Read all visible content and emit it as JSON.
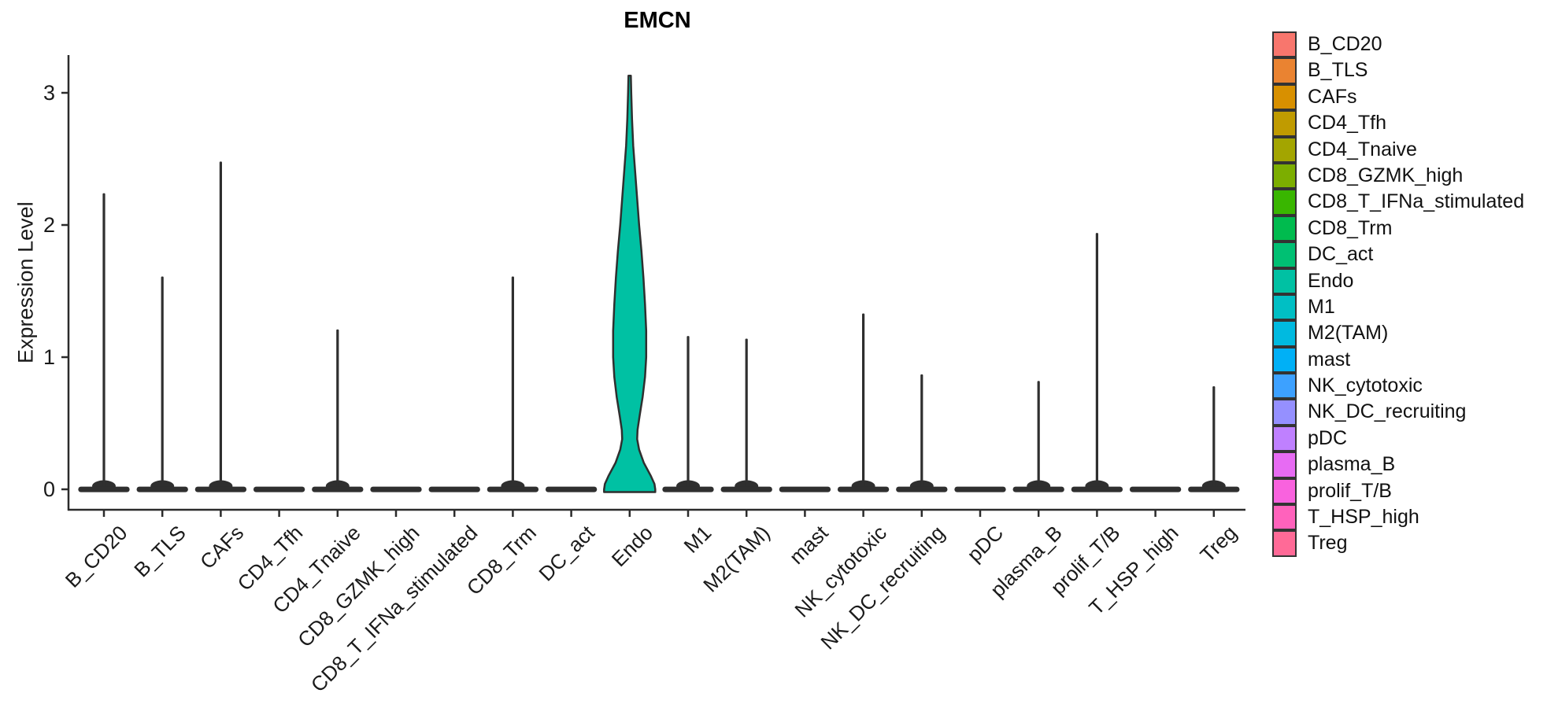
{
  "figure": {
    "title": "EMCN",
    "ylabel": "Expression Level"
  },
  "chart_data": {
    "type": "violin",
    "title": "EMCN",
    "xlabel": "",
    "ylabel": "Expression Level",
    "ylim": [
      0,
      3.3
    ],
    "yticks": [
      0,
      1,
      2,
      3
    ],
    "grid": false,
    "legend_position": "right",
    "axis_color": "#2b2b2b",
    "violin_ink_color": "#2f2f2f",
    "categories": [
      "B_CD20",
      "B_TLS",
      "CAFs",
      "CD4_Tfh",
      "CD4_Tnaive",
      "CD8_GZMK_high",
      "CD8_T_IFNa_stimulated",
      "CD8_Trm",
      "DC_act",
      "Endo",
      "M1",
      "M2(TAM)",
      "mast",
      "NK_cytotoxic",
      "NK_DC_recruiting",
      "pDC",
      "plasma_B",
      "prolif_T/B",
      "T_HSP_high",
      "Treg"
    ],
    "series": [
      {
        "name": "B_CD20",
        "color": "#F8766D",
        "max_expression": 2.24,
        "shape": "spike"
      },
      {
        "name": "B_TLS",
        "color": "#EA8331",
        "max_expression": 1.61,
        "shape": "spike"
      },
      {
        "name": "CAFs",
        "color": "#D89000",
        "max_expression": 2.48,
        "shape": "spike"
      },
      {
        "name": "CD4_Tfh",
        "color": "#C09B00",
        "max_expression": 0,
        "shape": "flat"
      },
      {
        "name": "CD4_Tnaive",
        "color": "#A3A500",
        "max_expression": 1.21,
        "shape": "spike"
      },
      {
        "name": "CD8_GZMK_high",
        "color": "#7CAE00",
        "max_expression": 0,
        "shape": "flat"
      },
      {
        "name": "CD8_T_IFNa_stimulated",
        "color": "#39B600",
        "max_expression": 0,
        "shape": "flat"
      },
      {
        "name": "CD8_Trm",
        "color": "#00BB4E",
        "max_expression": 1.61,
        "shape": "spike"
      },
      {
        "name": "DC_act",
        "color": "#00C073",
        "max_expression": 0,
        "shape": "flat"
      },
      {
        "name": "Endo",
        "color": "#00C1A3",
        "max_expression": 3.13,
        "shape": "violin"
      },
      {
        "name": "M1",
        "color": "#00BFC4",
        "max_expression": 1.16,
        "shape": "spike"
      },
      {
        "name": "M2(TAM)",
        "color": "#00BAE0",
        "max_expression": 1.14,
        "shape": "spike"
      },
      {
        "name": "mast",
        "color": "#00B0F6",
        "max_expression": 0,
        "shape": "flat"
      },
      {
        "name": "NK_cytotoxic",
        "color": "#3DA1FF",
        "max_expression": 1.33,
        "shape": "spike"
      },
      {
        "name": "NK_DC_recruiting",
        "color": "#9590FF",
        "max_expression": 0.87,
        "shape": "spike"
      },
      {
        "name": "pDC",
        "color": "#BF80FF",
        "max_expression": 0,
        "shape": "flat"
      },
      {
        "name": "plasma_B",
        "color": "#E76BF3",
        "max_expression": 0.82,
        "shape": "spike"
      },
      {
        "name": "prolif_T/B",
        "color": "#F962DE",
        "max_expression": 1.94,
        "shape": "spike"
      },
      {
        "name": "T_HSP_high",
        "color": "#FF62BC",
        "max_expression": 0,
        "shape": "flat"
      },
      {
        "name": "Treg",
        "color": "#FF6A97",
        "max_expression": 0.78,
        "shape": "spike"
      }
    ],
    "endo_violin_profile": [
      [
        3.13,
        0.02
      ],
      [
        3.0,
        0.027
      ],
      [
        2.8,
        0.04
      ],
      [
        2.6,
        0.06
      ],
      [
        2.4,
        0.094
      ],
      [
        2.2,
        0.128
      ],
      [
        2.0,
        0.162
      ],
      [
        1.8,
        0.202
      ],
      [
        1.6,
        0.236
      ],
      [
        1.4,
        0.263
      ],
      [
        1.2,
        0.283
      ],
      [
        1.0,
        0.283
      ],
      [
        0.85,
        0.263
      ],
      [
        0.7,
        0.222
      ],
      [
        0.55,
        0.168
      ],
      [
        0.45,
        0.135
      ],
      [
        0.38,
        0.128
      ],
      [
        0.3,
        0.162
      ],
      [
        0.2,
        0.243
      ],
      [
        0.1,
        0.364
      ],
      [
        0.04,
        0.425
      ],
      [
        0.0,
        0.438
      ]
    ],
    "base_halfwidth_fraction": 0.44
  },
  "legend": {
    "items": [
      {
        "label": "B_CD20",
        "color": "#F8766D"
      },
      {
        "label": "B_TLS",
        "color": "#EA8331"
      },
      {
        "label": "CAFs",
        "color": "#D89000"
      },
      {
        "label": "CD4_Tfh",
        "color": "#C09B00"
      },
      {
        "label": "CD4_Tnaive",
        "color": "#A3A500"
      },
      {
        "label": "CD8_GZMK_high",
        "color": "#7CAE00"
      },
      {
        "label": "CD8_T_IFNa_stimulated",
        "color": "#39B600"
      },
      {
        "label": "CD8_Trm",
        "color": "#00BB4E"
      },
      {
        "label": "DC_act",
        "color": "#00C073"
      },
      {
        "label": "Endo",
        "color": "#00C1A3"
      },
      {
        "label": "M1",
        "color": "#00BFC4"
      },
      {
        "label": "M2(TAM)",
        "color": "#00BAE0"
      },
      {
        "label": "mast",
        "color": "#00B0F6"
      },
      {
        "label": "NK_cytotoxic",
        "color": "#3DA1FF"
      },
      {
        "label": "NK_DC_recruiting",
        "color": "#9590FF"
      },
      {
        "label": "pDC",
        "color": "#BF80FF"
      },
      {
        "label": "plasma_B",
        "color": "#E76BF3"
      },
      {
        "label": "prolif_T/B",
        "color": "#F962DE"
      },
      {
        "label": "T_HSP_high",
        "color": "#FF62BC"
      },
      {
        "label": "Treg",
        "color": "#FF6A97"
      }
    ]
  }
}
